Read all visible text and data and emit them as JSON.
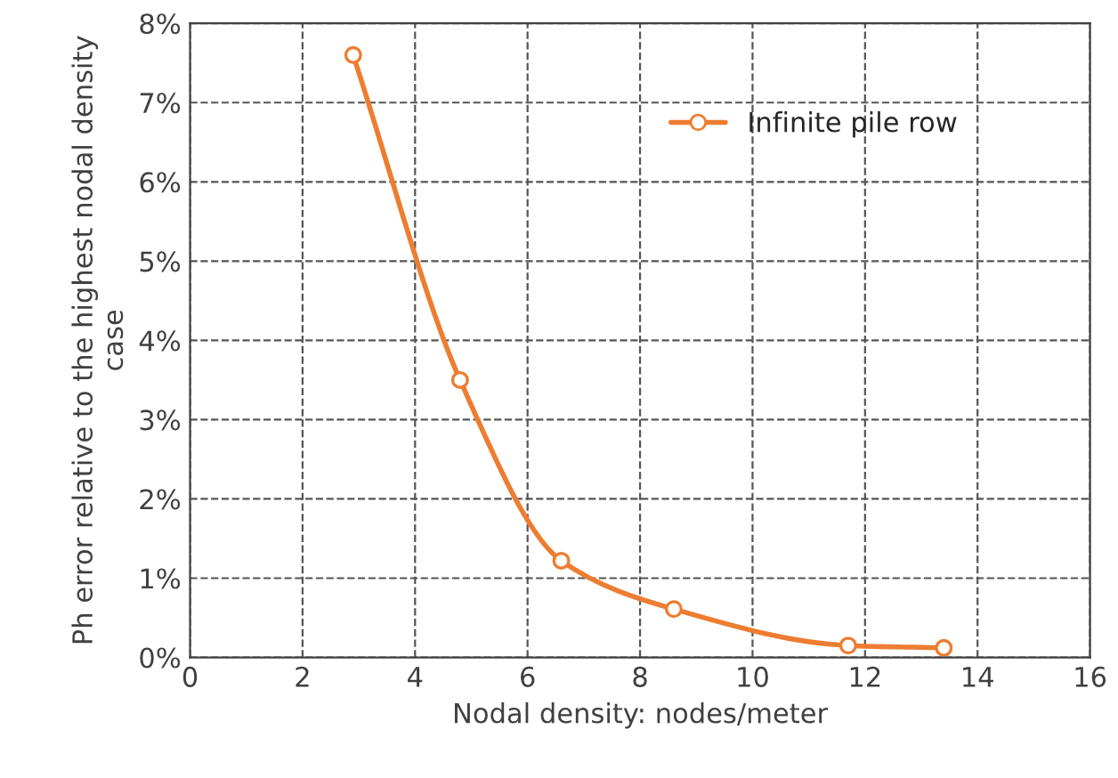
{
  "chart_data": {
    "type": "line",
    "xlabel": "Nodal density: nodes/meter",
    "ylabel": "Ph error relative to the highest nodal density case",
    "series": [
      {
        "name": "Infinite pile row",
        "color": "#ed7d31",
        "x": [
          2.9,
          4.8,
          6.6,
          8.6,
          11.7,
          13.4
        ],
        "values": [
          7.6,
          3.5,
          1.22,
          0.61,
          0.15,
          0.12
        ]
      }
    ],
    "xlim": [
      0,
      16
    ],
    "xticks": [
      0,
      2,
      4,
      6,
      8,
      10,
      12,
      14,
      16
    ],
    "ylim": [
      0,
      8
    ],
    "yticks": [
      {
        "value": 0,
        "label": "0%"
      },
      {
        "value": 1,
        "label": "1%"
      },
      {
        "value": 2,
        "label": "2%"
      },
      {
        "value": 3,
        "label": "3%"
      },
      {
        "value": 4,
        "label": "4%"
      },
      {
        "value": 5,
        "label": "5%"
      },
      {
        "value": 6,
        "label": "6%"
      },
      {
        "value": 7,
        "label": "7%"
      },
      {
        "value": 8,
        "label": "8%"
      }
    ],
    "grid": true,
    "legend": "top right",
    "marker": "circle",
    "line_style": "solid"
  }
}
